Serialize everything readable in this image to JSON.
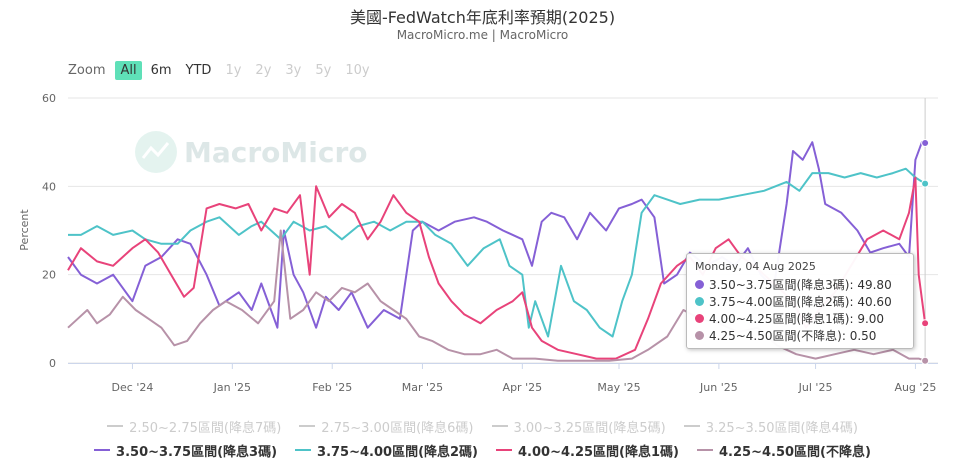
{
  "header": {
    "title": "美國-FedWatch年底利率預期(2025)",
    "subtitle": "MacroMicro.me | MacroMicro"
  },
  "range_selector": {
    "zoom_label": "Zoom",
    "buttons": [
      {
        "label": "All",
        "state": "active"
      },
      {
        "label": "6m",
        "state": "enabled"
      },
      {
        "label": "YTD",
        "state": "enabled"
      },
      {
        "label": "1y",
        "state": "disabled"
      },
      {
        "label": "2y",
        "state": "disabled"
      },
      {
        "label": "3y",
        "state": "disabled"
      },
      {
        "label": "5y",
        "state": "disabled"
      },
      {
        "label": "10y",
        "state": "disabled"
      }
    ]
  },
  "watermark": "MacroMicro",
  "legend": {
    "hidden": [
      "2.50~2.75區間(降息7碼)",
      "2.75~3.00區間(降息6碼)",
      "3.00~3.25區間(降息5碼)",
      "3.25~3.50區間(降息4碼)"
    ],
    "shown": [
      {
        "label": "3.50~3.75區間(降息3碼)",
        "color": "#8560d6"
      },
      {
        "label": "3.75~4.00區間(降息2碼)",
        "color": "#4ec3c8"
      },
      {
        "label": "4.00~4.25區間(降息1碼)",
        "color": "#e8437a"
      },
      {
        "label": "4.25~4.50區間(不降息)",
        "color": "#b792a8"
      }
    ]
  },
  "tooltip": {
    "date": "Monday, 04 Aug 2025",
    "rows": [
      {
        "text": "3.50~3.75區間(降息3碼): 49.80",
        "color": "#8560d6"
      },
      {
        "text": "3.75~4.00區間(降息2碼): 40.60",
        "color": "#4ec3c8"
      },
      {
        "text": "4.00~4.25區間(降息1碼): 9.00",
        "color": "#e8437a"
      },
      {
        "text": "4.25~4.50區間(不降息): 0.50",
        "color": "#b792a8"
      }
    ]
  },
  "chart_data": {
    "type": "line",
    "ylabel": "Percent",
    "ylim": [
      0,
      60
    ],
    "yticks": [
      0,
      20,
      40,
      60
    ],
    "xlim": [
      "2024-11-11",
      "2025-08-08"
    ],
    "xticks": [
      {
        "date": "2024-12-01",
        "label": "Dec '24"
      },
      {
        "date": "2025-01-01",
        "label": "Jan '25"
      },
      {
        "date": "2025-02-01",
        "label": "Feb '25"
      },
      {
        "date": "2025-03-01",
        "label": "Mar '25"
      },
      {
        "date": "2025-04-01",
        "label": "Apr '25"
      },
      {
        "date": "2025-05-01",
        "label": "May '25"
      },
      {
        "date": "2025-06-01",
        "label": "Jun '25"
      },
      {
        "date": "2025-07-01",
        "label": "Jul '25"
      },
      {
        "date": "2025-08-01",
        "label": "Aug '25"
      }
    ],
    "grid": true,
    "legend_position": "bottom",
    "series": [
      {
        "name": "3.50~3.75區間(降息3碼)",
        "color": "#8560d6",
        "points": [
          [
            "2024-11-11",
            24
          ],
          [
            "2024-11-15",
            20
          ],
          [
            "2024-11-20",
            18
          ],
          [
            "2024-11-25",
            20
          ],
          [
            "2024-12-01",
            14
          ],
          [
            "2024-12-05",
            22
          ],
          [
            "2024-12-10",
            24
          ],
          [
            "2024-12-15",
            28
          ],
          [
            "2024-12-19",
            27
          ],
          [
            "2024-12-24",
            20
          ],
          [
            "2024-12-28",
            13
          ],
          [
            "2025-01-03",
            16
          ],
          [
            "2025-01-07",
            12
          ],
          [
            "2025-01-10",
            18
          ],
          [
            "2025-01-13",
            12
          ],
          [
            "2025-01-15",
            8
          ],
          [
            "2025-01-17",
            30
          ],
          [
            "2025-01-20",
            20
          ],
          [
            "2025-01-23",
            16
          ],
          [
            "2025-01-27",
            8
          ],
          [
            "2025-01-30",
            15
          ],
          [
            "2025-02-03",
            12
          ],
          [
            "2025-02-07",
            16
          ],
          [
            "2025-02-12",
            8
          ],
          [
            "2025-02-17",
            12
          ],
          [
            "2025-02-22",
            10
          ],
          [
            "2025-02-26",
            30
          ],
          [
            "2025-03-01",
            32
          ],
          [
            "2025-03-06",
            30
          ],
          [
            "2025-03-11",
            32
          ],
          [
            "2025-03-17",
            33
          ],
          [
            "2025-03-21",
            32
          ],
          [
            "2025-03-26",
            30
          ],
          [
            "2025-04-01",
            28
          ],
          [
            "2025-04-04",
            22
          ],
          [
            "2025-04-07",
            32
          ],
          [
            "2025-04-10",
            34
          ],
          [
            "2025-04-14",
            33
          ],
          [
            "2025-04-18",
            28
          ],
          [
            "2025-04-22",
            34
          ],
          [
            "2025-04-27",
            30
          ],
          [
            "2025-05-01",
            35
          ],
          [
            "2025-05-05",
            36
          ],
          [
            "2025-05-08",
            37
          ],
          [
            "2025-05-12",
            33
          ],
          [
            "2025-05-15",
            18
          ],
          [
            "2025-05-19",
            20
          ],
          [
            "2025-05-23",
            25
          ],
          [
            "2025-05-28",
            22
          ],
          [
            "2025-06-02",
            24
          ],
          [
            "2025-06-06",
            22
          ],
          [
            "2025-06-10",
            26
          ],
          [
            "2025-06-14",
            20
          ],
          [
            "2025-06-18",
            17
          ],
          [
            "2025-06-22",
            36
          ],
          [
            "2025-06-24",
            48
          ],
          [
            "2025-06-27",
            46
          ],
          [
            "2025-06-30",
            50
          ],
          [
            "2025-07-02",
            44
          ],
          [
            "2025-07-04",
            36
          ],
          [
            "2025-07-09",
            34
          ],
          [
            "2025-07-14",
            30
          ],
          [
            "2025-07-18",
            25
          ],
          [
            "2025-07-22",
            26
          ],
          [
            "2025-07-27",
            27
          ],
          [
            "2025-07-30",
            24
          ],
          [
            "2025-08-01",
            46
          ],
          [
            "2025-08-03",
            50
          ],
          [
            "2025-08-04",
            49.8
          ]
        ]
      },
      {
        "name": "3.75~4.00區間(降息2碼)",
        "color": "#4ec3c8",
        "points": [
          [
            "2024-11-11",
            29
          ],
          [
            "2024-11-15",
            29
          ],
          [
            "2024-11-20",
            31
          ],
          [
            "2024-11-25",
            29
          ],
          [
            "2024-12-01",
            30
          ],
          [
            "2024-12-05",
            28
          ],
          [
            "2024-12-10",
            27
          ],
          [
            "2024-12-15",
            27
          ],
          [
            "2024-12-19",
            30
          ],
          [
            "2024-12-24",
            32
          ],
          [
            "2024-12-28",
            33
          ],
          [
            "2025-01-03",
            29
          ],
          [
            "2025-01-07",
            31
          ],
          [
            "2025-01-10",
            32
          ],
          [
            "2025-01-13",
            30
          ],
          [
            "2025-01-16",
            28
          ],
          [
            "2025-01-20",
            32
          ],
          [
            "2025-01-25",
            30
          ],
          [
            "2025-01-30",
            31
          ],
          [
            "2025-02-04",
            28
          ],
          [
            "2025-02-09",
            31
          ],
          [
            "2025-02-14",
            32
          ],
          [
            "2025-02-19",
            30
          ],
          [
            "2025-02-24",
            32
          ],
          [
            "2025-03-01",
            32
          ],
          [
            "2025-03-05",
            29
          ],
          [
            "2025-03-10",
            27
          ],
          [
            "2025-03-15",
            22
          ],
          [
            "2025-03-20",
            26
          ],
          [
            "2025-03-25",
            28
          ],
          [
            "2025-03-28",
            22
          ],
          [
            "2025-04-01",
            20
          ],
          [
            "2025-04-03",
            8
          ],
          [
            "2025-04-05",
            14
          ],
          [
            "2025-04-09",
            6
          ],
          [
            "2025-04-13",
            22
          ],
          [
            "2025-04-17",
            14
          ],
          [
            "2025-04-21",
            12
          ],
          [
            "2025-04-25",
            8
          ],
          [
            "2025-04-29",
            6
          ],
          [
            "2025-05-02",
            14
          ],
          [
            "2025-05-05",
            20
          ],
          [
            "2025-05-08",
            34
          ],
          [
            "2025-05-12",
            38
          ],
          [
            "2025-05-16",
            37
          ],
          [
            "2025-05-20",
            36
          ],
          [
            "2025-05-26",
            37
          ],
          [
            "2025-06-01",
            37
          ],
          [
            "2025-06-08",
            38
          ],
          [
            "2025-06-15",
            39
          ],
          [
            "2025-06-22",
            41
          ],
          [
            "2025-06-26",
            39
          ],
          [
            "2025-06-30",
            43
          ],
          [
            "2025-07-05",
            43
          ],
          [
            "2025-07-10",
            42
          ],
          [
            "2025-07-15",
            43
          ],
          [
            "2025-07-20",
            42
          ],
          [
            "2025-07-25",
            43
          ],
          [
            "2025-07-29",
            44
          ],
          [
            "2025-08-01",
            42
          ],
          [
            "2025-08-04",
            40.6
          ]
        ]
      },
      {
        "name": "4.00~4.25區間(降息1碼)",
        "color": "#e8437a",
        "points": [
          [
            "2024-11-11",
            21
          ],
          [
            "2024-11-15",
            26
          ],
          [
            "2024-11-20",
            23
          ],
          [
            "2024-11-25",
            22
          ],
          [
            "2024-12-01",
            26
          ],
          [
            "2024-12-05",
            28
          ],
          [
            "2024-12-09",
            25
          ],
          [
            "2024-12-13",
            20
          ],
          [
            "2024-12-17",
            15
          ],
          [
            "2024-12-20",
            17
          ],
          [
            "2024-12-24",
            35
          ],
          [
            "2024-12-28",
            36
          ],
          [
            "2025-01-02",
            35
          ],
          [
            "2025-01-06",
            36
          ],
          [
            "2025-01-10",
            30
          ],
          [
            "2025-01-14",
            35
          ],
          [
            "2025-01-18",
            34
          ],
          [
            "2025-01-22",
            38
          ],
          [
            "2025-01-25",
            20
          ],
          [
            "2025-01-27",
            40
          ],
          [
            "2025-01-31",
            33
          ],
          [
            "2025-02-04",
            36
          ],
          [
            "2025-02-08",
            34
          ],
          [
            "2025-02-12",
            28
          ],
          [
            "2025-02-16",
            32
          ],
          [
            "2025-02-20",
            38
          ],
          [
            "2025-02-24",
            34
          ],
          [
            "2025-02-28",
            32
          ],
          [
            "2025-03-03",
            24
          ],
          [
            "2025-03-06",
            18
          ],
          [
            "2025-03-10",
            14
          ],
          [
            "2025-03-14",
            11
          ],
          [
            "2025-03-19",
            9
          ],
          [
            "2025-03-24",
            12
          ],
          [
            "2025-03-29",
            14
          ],
          [
            "2025-04-01",
            16
          ],
          [
            "2025-04-04",
            8
          ],
          [
            "2025-04-07",
            5
          ],
          [
            "2025-04-12",
            3
          ],
          [
            "2025-04-18",
            2
          ],
          [
            "2025-04-24",
            1
          ],
          [
            "2025-04-30",
            1
          ],
          [
            "2025-05-06",
            3
          ],
          [
            "2025-05-10",
            10
          ],
          [
            "2025-05-14",
            18
          ],
          [
            "2025-05-19",
            22
          ],
          [
            "2025-05-23",
            24
          ],
          [
            "2025-05-27",
            20
          ],
          [
            "2025-05-31",
            26
          ],
          [
            "2025-06-04",
            28
          ],
          [
            "2025-06-08",
            24
          ],
          [
            "2025-06-12",
            22
          ],
          [
            "2025-06-18",
            18
          ],
          [
            "2025-06-24",
            14
          ],
          [
            "2025-06-28",
            8
          ],
          [
            "2025-07-02",
            12
          ],
          [
            "2025-07-07",
            16
          ],
          [
            "2025-07-12",
            22
          ],
          [
            "2025-07-17",
            28
          ],
          [
            "2025-07-22",
            30
          ],
          [
            "2025-07-27",
            28
          ],
          [
            "2025-07-30",
            34
          ],
          [
            "2025-08-01",
            42
          ],
          [
            "2025-08-02",
            20
          ],
          [
            "2025-08-04",
            9
          ]
        ]
      },
      {
        "name": "4.25~4.50區間(不降息)",
        "color": "#b792a8",
        "points": [
          [
            "2024-11-11",
            8
          ],
          [
            "2024-11-14",
            10
          ],
          [
            "2024-11-17",
            12
          ],
          [
            "2024-11-20",
            9
          ],
          [
            "2024-11-24",
            11
          ],
          [
            "2024-11-28",
            15
          ],
          [
            "2024-12-02",
            12
          ],
          [
            "2024-12-06",
            10
          ],
          [
            "2024-12-10",
            8
          ],
          [
            "2024-12-14",
            4
          ],
          [
            "2024-12-18",
            5
          ],
          [
            "2024-12-22",
            9
          ],
          [
            "2024-12-26",
            12
          ],
          [
            "2024-12-30",
            14
          ],
          [
            "2025-01-04",
            12
          ],
          [
            "2025-01-09",
            9
          ],
          [
            "2025-01-14",
            14
          ],
          [
            "2025-01-16",
            30
          ],
          [
            "2025-01-19",
            10
          ],
          [
            "2025-01-23",
            12
          ],
          [
            "2025-01-27",
            16
          ],
          [
            "2025-01-31",
            14
          ],
          [
            "2025-02-04",
            17
          ],
          [
            "2025-02-08",
            16
          ],
          [
            "2025-02-12",
            18
          ],
          [
            "2025-02-16",
            14
          ],
          [
            "2025-02-20",
            12
          ],
          [
            "2025-02-24",
            10
          ],
          [
            "2025-02-28",
            6
          ],
          [
            "2025-03-04",
            5
          ],
          [
            "2025-03-09",
            3
          ],
          [
            "2025-03-14",
            2
          ],
          [
            "2025-03-19",
            2
          ],
          [
            "2025-03-24",
            3
          ],
          [
            "2025-03-29",
            1
          ],
          [
            "2025-04-05",
            1
          ],
          [
            "2025-04-12",
            0.5
          ],
          [
            "2025-04-20",
            0.5
          ],
          [
            "2025-04-28",
            0.5
          ],
          [
            "2025-05-05",
            1
          ],
          [
            "2025-05-10",
            3
          ],
          [
            "2025-05-16",
            6
          ],
          [
            "2025-05-21",
            12
          ],
          [
            "2025-05-26",
            10
          ],
          [
            "2025-06-01",
            9
          ],
          [
            "2025-06-07",
            7
          ],
          [
            "2025-06-13",
            8
          ],
          [
            "2025-06-19",
            4
          ],
          [
            "2025-06-25",
            2
          ],
          [
            "2025-07-01",
            1
          ],
          [
            "2025-07-07",
            2
          ],
          [
            "2025-07-13",
            3
          ],
          [
            "2025-07-19",
            2
          ],
          [
            "2025-07-25",
            3
          ],
          [
            "2025-07-30",
            1
          ],
          [
            "2025-08-02",
            1
          ],
          [
            "2025-08-04",
            0.5
          ]
        ]
      }
    ]
  }
}
